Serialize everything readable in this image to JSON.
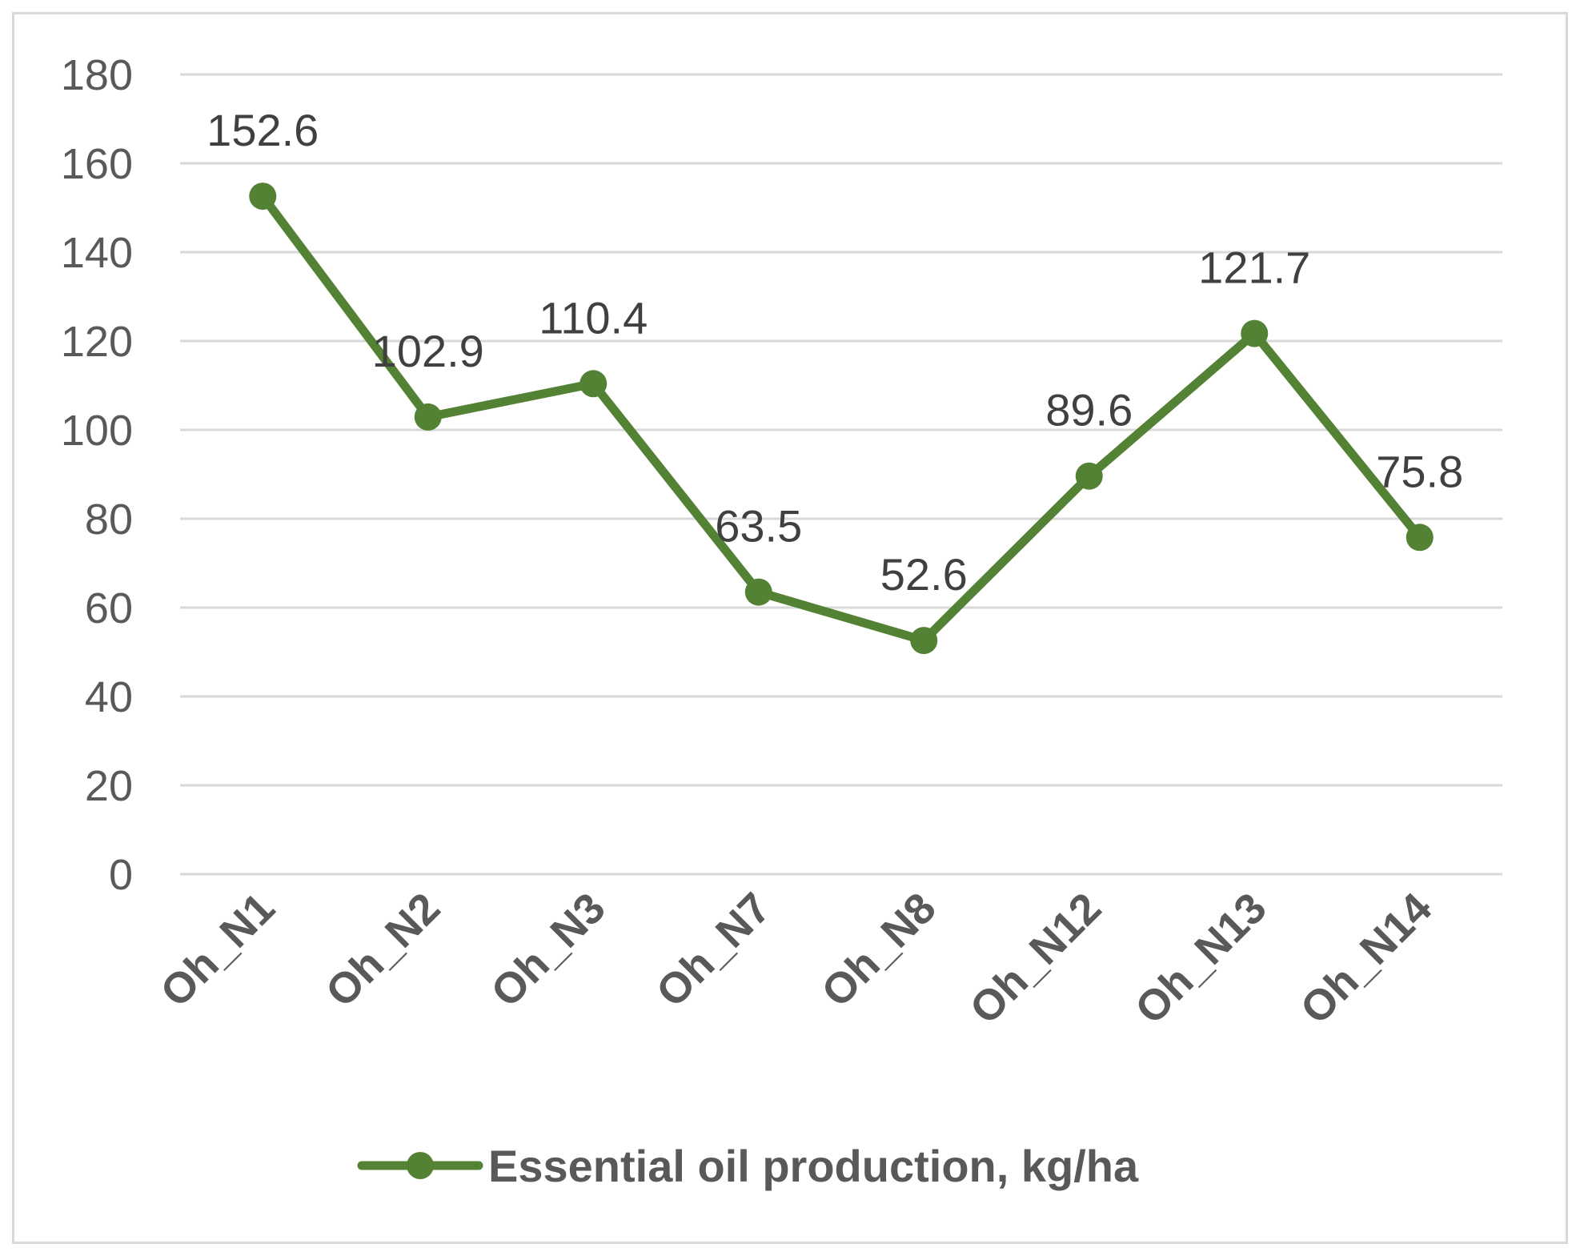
{
  "chart_data": {
    "type": "line",
    "categories": [
      "Oh_N1",
      "Oh_N2",
      "Oh_N3",
      "Oh_N7",
      "Oh_N8",
      "Oh_N12",
      "Oh_N13",
      "Oh_N14"
    ],
    "series": [
      {
        "name": "Essential oil production, kg/ha",
        "values": [
          152.6,
          102.9,
          110.4,
          63.5,
          52.6,
          89.6,
          121.7,
          75.8
        ],
        "color": "#548235"
      }
    ],
    "data_labels": [
      "152.6",
      "102.9",
      "110.4",
      "63.5",
      "52.6",
      "89.6",
      "121.7",
      "75.8"
    ],
    "ylim": [
      0,
      180
    ],
    "y_ticks": [
      "0",
      "20",
      "40",
      "60",
      "80",
      "100",
      "120",
      "140",
      "160",
      "180"
    ],
    "grid": true,
    "legend_position": "bottom",
    "markers": "circle"
  }
}
